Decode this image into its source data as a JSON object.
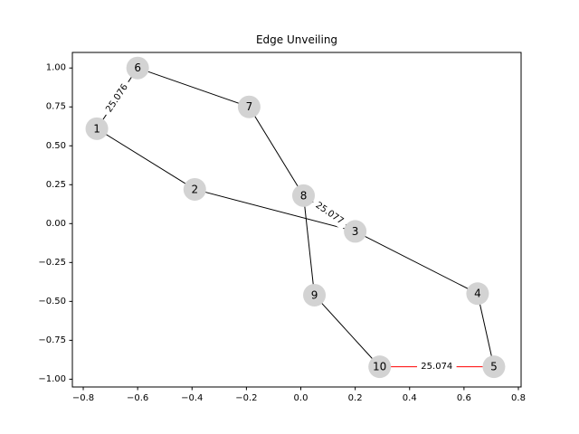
{
  "chart_data": {
    "type": "network",
    "title": "Edge Unveiling",
    "xlabel": "",
    "ylabel": "",
    "xlim": [
      -0.84,
      0.81
    ],
    "ylim": [
      -1.05,
      1.1
    ],
    "xticks": [
      -0.8,
      -0.6,
      -0.4,
      -0.2,
      0.0,
      0.2,
      0.4,
      0.6,
      0.8
    ],
    "xtick_labels": [
      "−0.8",
      "−0.6",
      "−0.4",
      "−0.2",
      "0.0",
      "0.2",
      "0.4",
      "0.6",
      "0.8"
    ],
    "yticks": [
      1.0,
      0.75,
      0.5,
      0.25,
      0.0,
      -0.25,
      -0.5,
      -0.75,
      -1.0
    ],
    "ytick_labels": [
      "1.00",
      "0.75",
      "0.50",
      "0.25",
      "0.00",
      "−0.25",
      "−0.50",
      "−0.75",
      "−1.00"
    ],
    "grid": false,
    "node_color": "#d3d3d3",
    "edge_color": "#000000",
    "highlight_color": "#ff0000",
    "nodes": [
      {
        "id": "1",
        "x": -0.75,
        "y": 0.61
      },
      {
        "id": "2",
        "x": -0.39,
        "y": 0.22
      },
      {
        "id": "3",
        "x": 0.2,
        "y": -0.05
      },
      {
        "id": "4",
        "x": 0.65,
        "y": -0.45
      },
      {
        "id": "5",
        "x": 0.71,
        "y": -0.92
      },
      {
        "id": "6",
        "x": -0.6,
        "y": 1.0
      },
      {
        "id": "7",
        "x": -0.19,
        "y": 0.75
      },
      {
        "id": "8",
        "x": 0.01,
        "y": 0.18
      },
      {
        "id": "9",
        "x": 0.05,
        "y": -0.46
      },
      {
        "id": "10",
        "x": 0.29,
        "y": -0.92
      }
    ],
    "edges": [
      {
        "source": "1",
        "target": "6",
        "label": "25.076",
        "highlight": false
      },
      {
        "source": "6",
        "target": "7",
        "label": "",
        "highlight": false
      },
      {
        "source": "7",
        "target": "8",
        "label": "",
        "highlight": false
      },
      {
        "source": "8",
        "target": "9",
        "label": "",
        "highlight": false
      },
      {
        "source": "9",
        "target": "10",
        "label": "",
        "highlight": false
      },
      {
        "source": "10",
        "target": "5",
        "label": "25.074",
        "highlight": true
      },
      {
        "source": "5",
        "target": "4",
        "label": "",
        "highlight": false
      },
      {
        "source": "4",
        "target": "3",
        "label": "",
        "highlight": false
      },
      {
        "source": "3",
        "target": "8",
        "label": "25.077",
        "highlight": false
      },
      {
        "source": "1",
        "target": "2",
        "label": "",
        "highlight": false
      },
      {
        "source": "2",
        "target": "3",
        "label": "",
        "highlight": false
      }
    ]
  }
}
